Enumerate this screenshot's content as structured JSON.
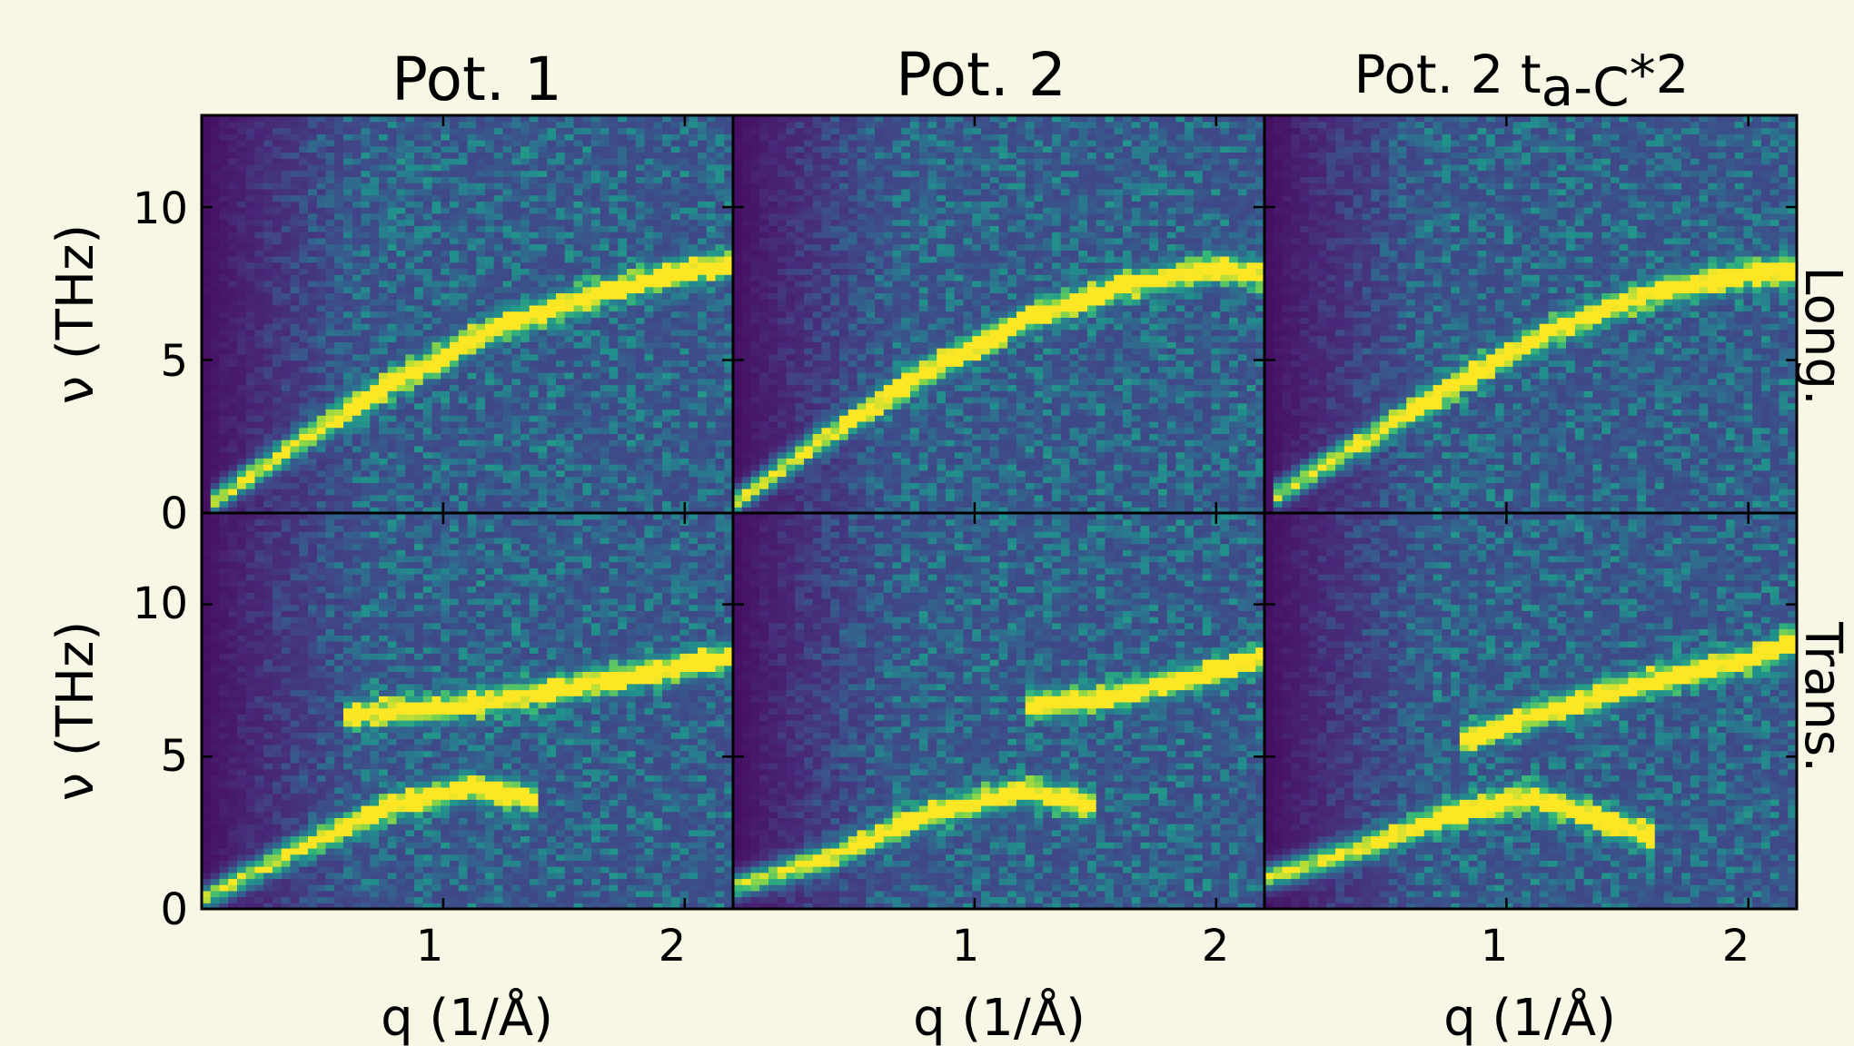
{
  "chart_data": {
    "type": "heatmap",
    "colormap": "viridis",
    "rows": [
      {
        "label": "Long."
      },
      {
        "label": "Trans."
      }
    ],
    "columns": [
      {
        "title": "Pot. 1"
      },
      {
        "title": "Pot. 2"
      },
      {
        "title_main": "Pot. 2 t",
        "title_sub": "a-C",
        "title_tail": "*2"
      }
    ],
    "xlabel": "q (1/Å)",
    "ylabel": "ν (THz)",
    "xlim": [
      0.0,
      2.2
    ],
    "ylim": [
      0,
      13
    ],
    "xticks": [
      1,
      2
    ],
    "yticks": [
      0,
      5,
      10
    ],
    "grid": false,
    "dispersion_branches": {
      "Long.": [
        {
          "panel": "Pot. 1",
          "q": [
            0.05,
            0.4,
            0.8,
            1.2,
            1.6,
            2.0,
            2.2
          ],
          "nu": [
            0.4,
            2.3,
            4.3,
            6.0,
            7.1,
            7.9,
            8.2
          ]
        },
        {
          "panel": "Pot. 2",
          "q": [
            0.0,
            0.4,
            0.8,
            1.2,
            1.6,
            2.0,
            2.2
          ],
          "nu": [
            0.3,
            2.6,
            4.6,
            6.3,
            7.4,
            8.0,
            7.8
          ]
        },
        {
          "panel": "Pot. 2 ta-C*2",
          "q": [
            0.05,
            0.4,
            0.8,
            1.2,
            1.6,
            2.0,
            2.2
          ],
          "nu": [
            0.6,
            2.3,
            4.3,
            6.0,
            7.2,
            7.8,
            7.9
          ]
        }
      ],
      "Trans.": [
        {
          "panel": "Pot. 1",
          "q": [
            0.0,
            0.4,
            0.8,
            1.1,
            1.4
          ],
          "nu": [
            0.3,
            2.0,
            3.4,
            4.0,
            3.6
          ]
        },
        {
          "panel": "Pot. 1",
          "q": [
            0.6,
            1.0,
            1.4,
            1.8,
            2.2
          ],
          "nu": [
            6.4,
            6.6,
            7.1,
            7.7,
            8.3
          ]
        },
        {
          "panel": "Pot. 2",
          "q": [
            0.0,
            0.4,
            0.8,
            1.2,
            1.5
          ],
          "nu": [
            0.7,
            1.7,
            3.1,
            3.9,
            3.4
          ]
        },
        {
          "panel": "Pot. 2",
          "q": [
            1.2,
            1.5,
            1.8,
            2.0,
            2.2
          ],
          "nu": [
            6.7,
            6.9,
            7.4,
            7.8,
            8.3
          ]
        },
        {
          "panel": "Pot. 2 ta-C*2",
          "q": [
            0.0,
            0.4,
            0.8,
            1.1,
            1.6
          ],
          "nu": [
            1.0,
            2.0,
            3.2,
            3.7,
            2.4
          ]
        },
        {
          "panel": "Pot. 2 ta-C*2",
          "q": [
            0.8,
            1.2,
            1.6,
            2.0,
            2.2
          ],
          "nu": [
            5.5,
            6.6,
            7.5,
            8.2,
            8.8
          ]
        }
      ]
    }
  }
}
